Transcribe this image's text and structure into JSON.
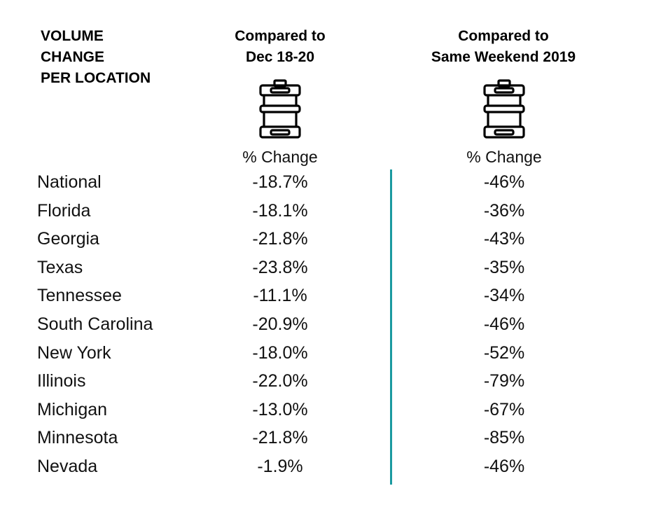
{
  "header": {
    "left_lines": [
      "VOLUME",
      "CHANGE",
      "PER LOCATION"
    ],
    "col1_lines": [
      "Compared to",
      "Dec 18-20"
    ],
    "col2_lines": [
      "Compared to",
      "Same Weekend 2019"
    ]
  },
  "icons": {
    "col1": "beer-keg-icon",
    "col2": "beer-keg-icon"
  },
  "subheader": {
    "col1": "% Change",
    "col2": "% Change"
  },
  "colors": {
    "divider": "#1b9aa0",
    "text": "#111111"
  },
  "rows": [
    {
      "location": "National",
      "vs_dec": "-18.7%",
      "vs_2019": "-46%"
    },
    {
      "location": "Florida",
      "vs_dec": "-18.1%",
      "vs_2019": "-36%"
    },
    {
      "location": "Georgia",
      "vs_dec": "-21.8%",
      "vs_2019": "-43%"
    },
    {
      "location": "Texas",
      "vs_dec": "-23.8%",
      "vs_2019": "-35%"
    },
    {
      "location": "Tennessee",
      "vs_dec": "-11.1%",
      "vs_2019": "-34%"
    },
    {
      "location": "South Carolina",
      "vs_dec": "-20.9%",
      "vs_2019": "-46%"
    },
    {
      "location": "New York",
      "vs_dec": "-18.0%",
      "vs_2019": "-52%"
    },
    {
      "location": "Illinois",
      "vs_dec": "-22.0%",
      "vs_2019": "-79%"
    },
    {
      "location": "Michigan",
      "vs_dec": "-13.0%",
      "vs_2019": "-67%"
    },
    {
      "location": "Minnesota",
      "vs_dec": "-21.8%",
      "vs_2019": "-85%"
    },
    {
      "location": "Nevada",
      "vs_dec": "-1.9%",
      "vs_2019": "-46%"
    }
  ]
}
